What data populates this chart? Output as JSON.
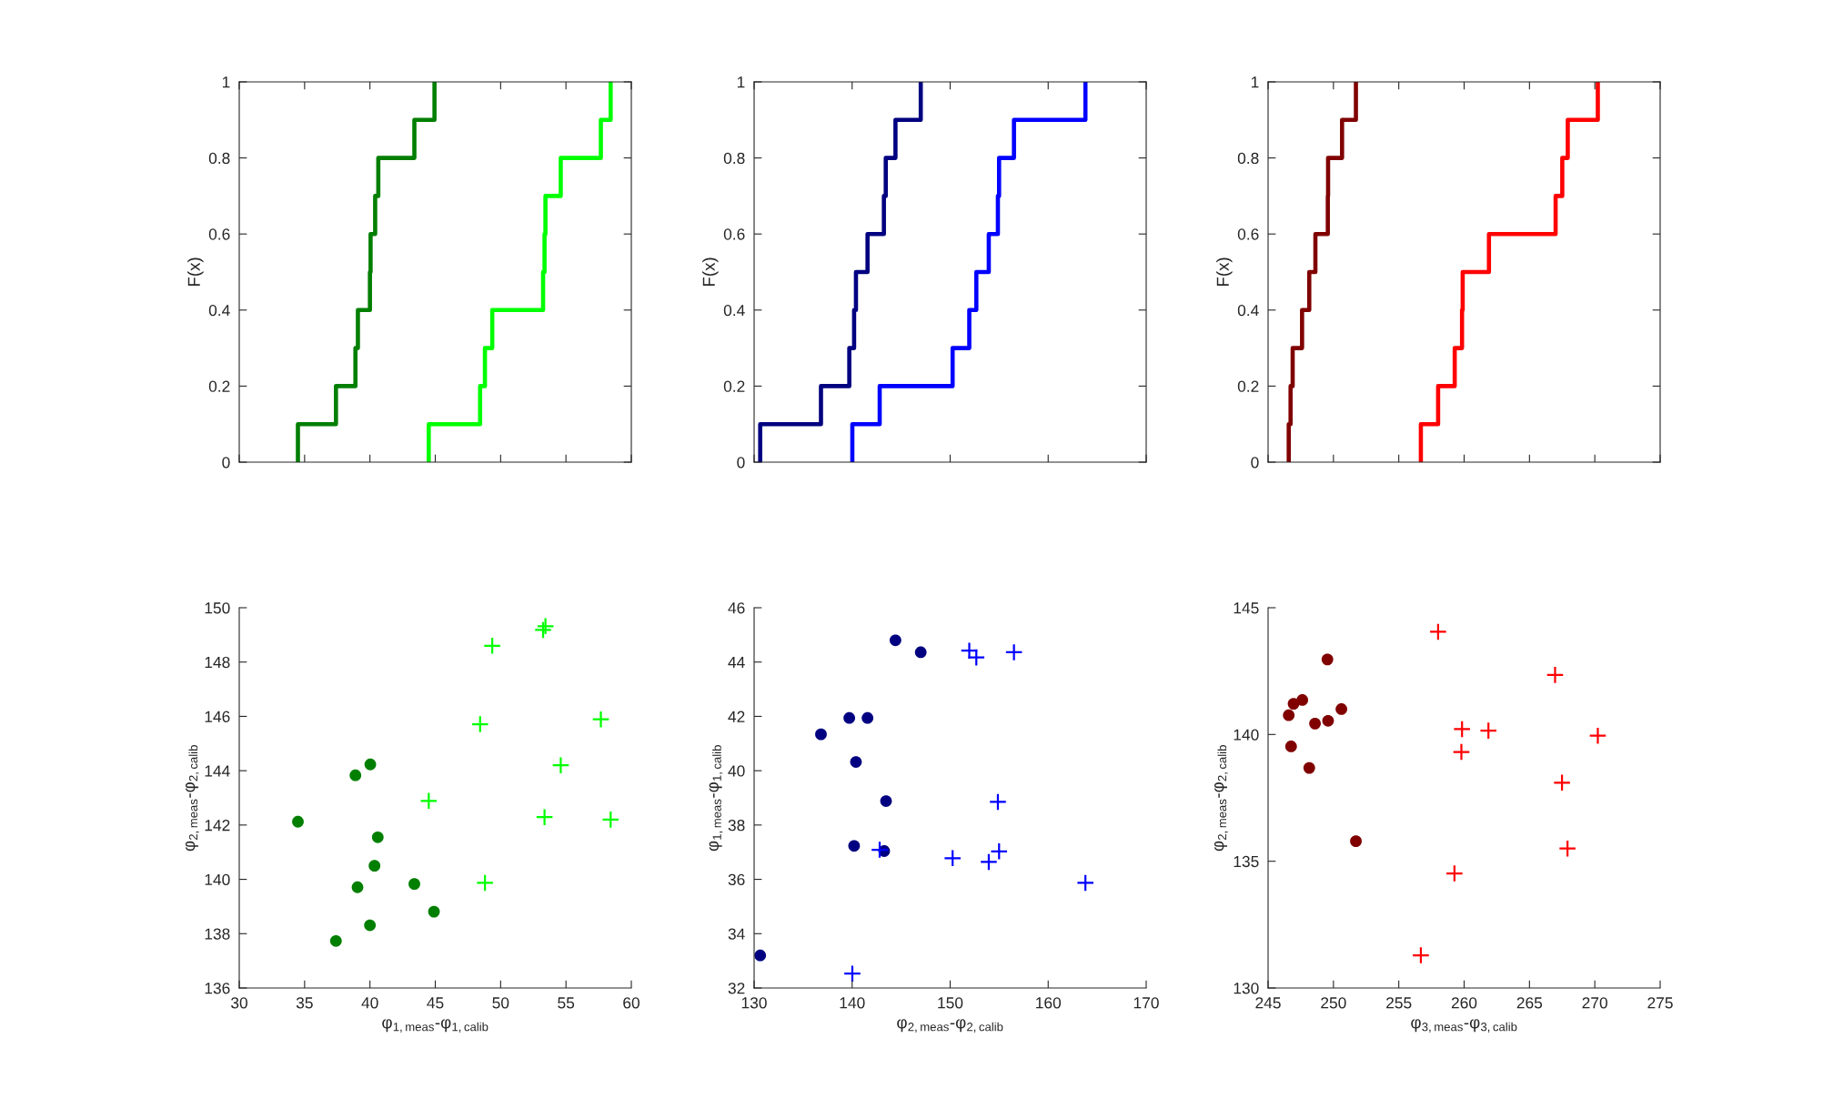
{
  "chart_data": [
    {
      "type": "step",
      "ylabel": "F(x)",
      "xlim": [
        30,
        60
      ],
      "xticks": [
        {
          "value": 30,
          "label": null
        },
        {
          "value": 35,
          "label": null
        },
        {
          "value": 40,
          "label": null
        },
        {
          "value": 45,
          "label": null
        },
        {
          "value": 50,
          "label": null
        },
        {
          "value": 55,
          "label": null
        },
        {
          "value": 60,
          "label": null
        }
      ],
      "ylim": [
        0,
        1
      ],
      "yticks": [
        0,
        0.2,
        0.4,
        0.6,
        0.8,
        1
      ],
      "tick_labels": "y",
      "grid": false,
      "series": [
        {
          "color": "#007f00",
          "x": [
            34.49,
            34.49,
            37.4,
            38.89,
            39.08,
            40.0,
            40.05,
            40.4,
            40.64,
            43.4,
            44.94
          ],
          "values": [
            0,
            0.1,
            0.2,
            0.3,
            0.4,
            0.5,
            0.6,
            0.7,
            0.8,
            0.9,
            1.0
          ]
        },
        {
          "color": "#00ff00",
          "x": [
            44.5,
            44.5,
            48.43,
            48.8,
            49.36,
            53.25,
            53.36,
            53.43,
            54.6,
            57.67,
            58.42
          ],
          "values": [
            0,
            0.1,
            0.2,
            0.3,
            0.4,
            0.5,
            0.6,
            0.7,
            0.8,
            0.9,
            1.0
          ]
        }
      ]
    },
    {
      "type": "step",
      "ylabel": "F(x)",
      "xlim": [
        130,
        170
      ],
      "xticks": [
        {
          "value": 130,
          "label": null
        },
        {
          "value": 140,
          "label": null
        },
        {
          "value": 150,
          "label": null
        },
        {
          "value": 160,
          "label": null
        },
        {
          "value": 170,
          "label": null
        }
      ],
      "ylim": [
        0,
        1
      ],
      "yticks": [
        0,
        0.2,
        0.4,
        0.6,
        0.8,
        1
      ],
      "tick_labels": "y",
      "grid": false,
      "series": [
        {
          "color": "#000080",
          "x": [
            130.62,
            130.62,
            136.82,
            139.71,
            140.2,
            140.39,
            141.57,
            143.24,
            143.43,
            144.42,
            147.0
          ],
          "values": [
            0,
            0.1,
            0.2,
            0.3,
            0.4,
            0.5,
            0.6,
            0.7,
            0.8,
            0.9,
            1.0
          ]
        },
        {
          "color": "#0000ff",
          "x": [
            140.02,
            140.02,
            142.81,
            150.25,
            151.95,
            152.67,
            153.94,
            154.87,
            154.99,
            156.51,
            163.8
          ],
          "values": [
            0,
            0.1,
            0.2,
            0.3,
            0.4,
            0.5,
            0.6,
            0.7,
            0.8,
            0.9,
            1.0
          ]
        }
      ]
    },
    {
      "type": "step",
      "ylabel": "F(x)",
      "xlim": [
        245,
        275
      ],
      "xticks": [
        {
          "value": 245,
          "label": null
        },
        {
          "value": 250,
          "label": null
        },
        {
          "value": 255,
          "label": null
        },
        {
          "value": 260,
          "label": null
        },
        {
          "value": 265,
          "label": null
        },
        {
          "value": 270,
          "label": null
        },
        {
          "value": 275,
          "label": null
        }
      ],
      "ylim": [
        0,
        1
      ],
      "yticks": [
        0,
        0.2,
        0.4,
        0.6,
        0.8,
        1
      ],
      "tick_labels": "y",
      "grid": false,
      "series": [
        {
          "color": "#800000",
          "x": [
            246.58,
            246.58,
            246.72,
            246.88,
            247.6,
            248.15,
            248.62,
            249.57,
            249.59,
            250.66,
            251.72
          ],
          "values": [
            0,
            0.1,
            0.2,
            0.3,
            0.4,
            0.5,
            0.6,
            0.7,
            0.8,
            0.9,
            1.0
          ]
        },
        {
          "color": "#ff0000",
          "x": [
            256.69,
            256.69,
            258.01,
            259.28,
            259.84,
            259.89,
            261.9,
            267.0,
            267.51,
            267.93,
            270.23
          ],
          "values": [
            0,
            0.1,
            0.2,
            0.3,
            0.4,
            0.5,
            0.6,
            0.7,
            0.8,
            0.9,
            1.0
          ]
        }
      ]
    },
    {
      "type": "scatter",
      "xlabel": "φ$_{1,meas}$-φ$_{1,calib}$",
      "ylabel": "φ$_{2,meas}$-φ$_{2,calib}$",
      "xlim": [
        30,
        60
      ],
      "xticks": [
        30,
        35,
        40,
        45,
        50,
        55,
        60
      ],
      "ylim": [
        136,
        150
      ],
      "yticks": [
        136,
        138,
        140,
        142,
        144,
        146,
        148,
        150
      ],
      "grid": false,
      "series": [
        {
          "color": "#007f00",
          "marker": "circle",
          "x": [
            34.49,
            37.4,
            38.89,
            39.05,
            40.03,
            40.0,
            40.6,
            40.35,
            43.4,
            44.9
          ],
          "values": [
            142.12,
            137.73,
            143.83,
            139.71,
            144.23,
            138.31,
            141.55,
            140.5,
            139.83,
            138.81
          ]
        },
        {
          "color": "#00ff00",
          "marker": "cross",
          "x": [
            44.5,
            48.43,
            48.8,
            49.36,
            53.25,
            53.43,
            53.36,
            54.6,
            57.67,
            58.42
          ],
          "values": [
            142.89,
            145.71,
            139.87,
            148.6,
            149.18,
            149.32,
            142.29,
            144.2,
            145.89,
            142.2
          ]
        }
      ]
    },
    {
      "type": "scatter",
      "xlabel": "φ$_{2,meas}$-φ$_{2,calib}$",
      "ylabel": "φ$_{1,meas}$-φ$_{1,calib}$",
      "xlim": [
        130,
        170
      ],
      "xticks": [
        130,
        140,
        150,
        160,
        170
      ],
      "ylim": [
        32,
        46
      ],
      "yticks": [
        32,
        34,
        36,
        38,
        40,
        42,
        44,
        46
      ],
      "grid": false,
      "series": [
        {
          "color": "#000080",
          "marker": "circle",
          "x": [
            130.62,
            136.82,
            139.71,
            140.2,
            140.39,
            141.57,
            143.27,
            143.46,
            144.42,
            147.0
          ],
          "values": [
            33.2,
            41.34,
            41.94,
            37.23,
            40.32,
            41.94,
            37.04,
            38.88,
            44.8,
            44.36
          ]
        },
        {
          "color": "#0000ff",
          "marker": "cross",
          "x": [
            140.02,
            142.81,
            150.25,
            151.95,
            152.67,
            153.94,
            154.87,
            154.99,
            156.51,
            163.8
          ],
          "values": [
            32.53,
            37.09,
            36.78,
            44.42,
            44.17,
            36.64,
            38.85,
            37.03,
            44.36,
            35.87
          ]
        }
      ]
    },
    {
      "type": "scatter",
      "xlabel": "φ$_{3,meas}$-φ$_{3,calib}$",
      "ylabel": "φ$_{2,meas}$-φ$_{2,calib}$",
      "xlim": [
        245,
        275
      ],
      "xticks": [
        245,
        250,
        255,
        260,
        265,
        270,
        275
      ],
      "ylim": [
        130,
        145
      ],
      "yticks": [
        130,
        135,
        140,
        145
      ],
      "grid": false,
      "series": [
        {
          "color": "#800000",
          "marker": "circle",
          "x": [
            246.58,
            246.76,
            246.95,
            247.62,
            248.15,
            248.59,
            249.54,
            249.59,
            250.61,
            251.72
          ],
          "values": [
            140.76,
            139.53,
            141.21,
            141.36,
            138.68,
            140.43,
            142.96,
            140.54,
            141.0,
            135.79
          ]
        },
        {
          "color": "#ff0000",
          "marker": "cross",
          "x": [
            256.69,
            258.01,
            259.26,
            259.79,
            259.84,
            261.86,
            266.96,
            267.49,
            267.91,
            270.23
          ],
          "values": [
            131.29,
            144.05,
            134.52,
            139.31,
            140.21,
            140.15,
            142.35,
            138.1,
            135.5,
            139.95
          ]
        }
      ]
    }
  ]
}
